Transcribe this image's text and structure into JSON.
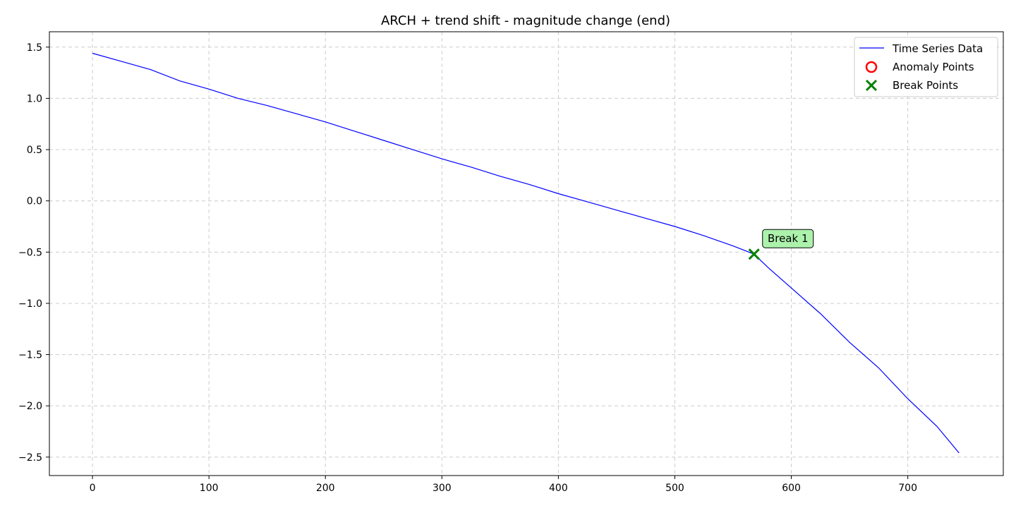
{
  "chart_data": {
    "type": "line",
    "title": "ARCH + trend shift - magnitude change (end)",
    "xlabel": "",
    "ylabel": "",
    "xlim": [
      -37,
      782
    ],
    "ylim": [
      -2.68,
      1.65
    ],
    "x_ticks": [
      0,
      100,
      200,
      300,
      400,
      500,
      600,
      700
    ],
    "y_ticks": [
      1.5,
      1.0,
      0.5,
      0.0,
      -0.5,
      -1.0,
      -1.5,
      -2.0,
      -2.5
    ],
    "x_tick_labels": [
      "0",
      "100",
      "200",
      "300",
      "400",
      "500",
      "600",
      "700"
    ],
    "y_tick_labels": [
      "1.5",
      "1.0",
      "0.5",
      "0.0",
      "−0.5",
      "−1.0",
      "−1.5",
      "−2.0",
      "−2.5"
    ],
    "grid": true,
    "legend_position": "top-right",
    "series": [
      {
        "name": "Time Series Data",
        "color": "#0000ff",
        "x": [
          0,
          25,
          50,
          75,
          100,
          125,
          150,
          175,
          200,
          225,
          250,
          275,
          300,
          325,
          350,
          375,
          400,
          425,
          450,
          475,
          500,
          525,
          550,
          568,
          580,
          600,
          625,
          650,
          675,
          700,
          725,
          744
        ],
        "y": [
          1.44,
          1.36,
          1.28,
          1.17,
          1.09,
          1.0,
          0.93,
          0.85,
          0.77,
          0.68,
          0.59,
          0.5,
          0.41,
          0.33,
          0.24,
          0.16,
          0.07,
          -0.01,
          -0.09,
          -0.17,
          -0.25,
          -0.34,
          -0.44,
          -0.52,
          -0.65,
          -0.85,
          -1.1,
          -1.38,
          -1.63,
          -1.93,
          -2.2,
          -2.46
        ]
      }
    ],
    "anomaly_points": {
      "name": "Anomaly Points",
      "color": "#ff0000",
      "x": [],
      "y": []
    },
    "break_points": {
      "name": "Break Points",
      "color": "#008000",
      "x": [
        568
      ],
      "y": [
        -0.52
      ],
      "labels": [
        "Break 1"
      ]
    },
    "legend": [
      "Time Series Data",
      "Anomaly Points",
      "Break Points"
    ]
  }
}
